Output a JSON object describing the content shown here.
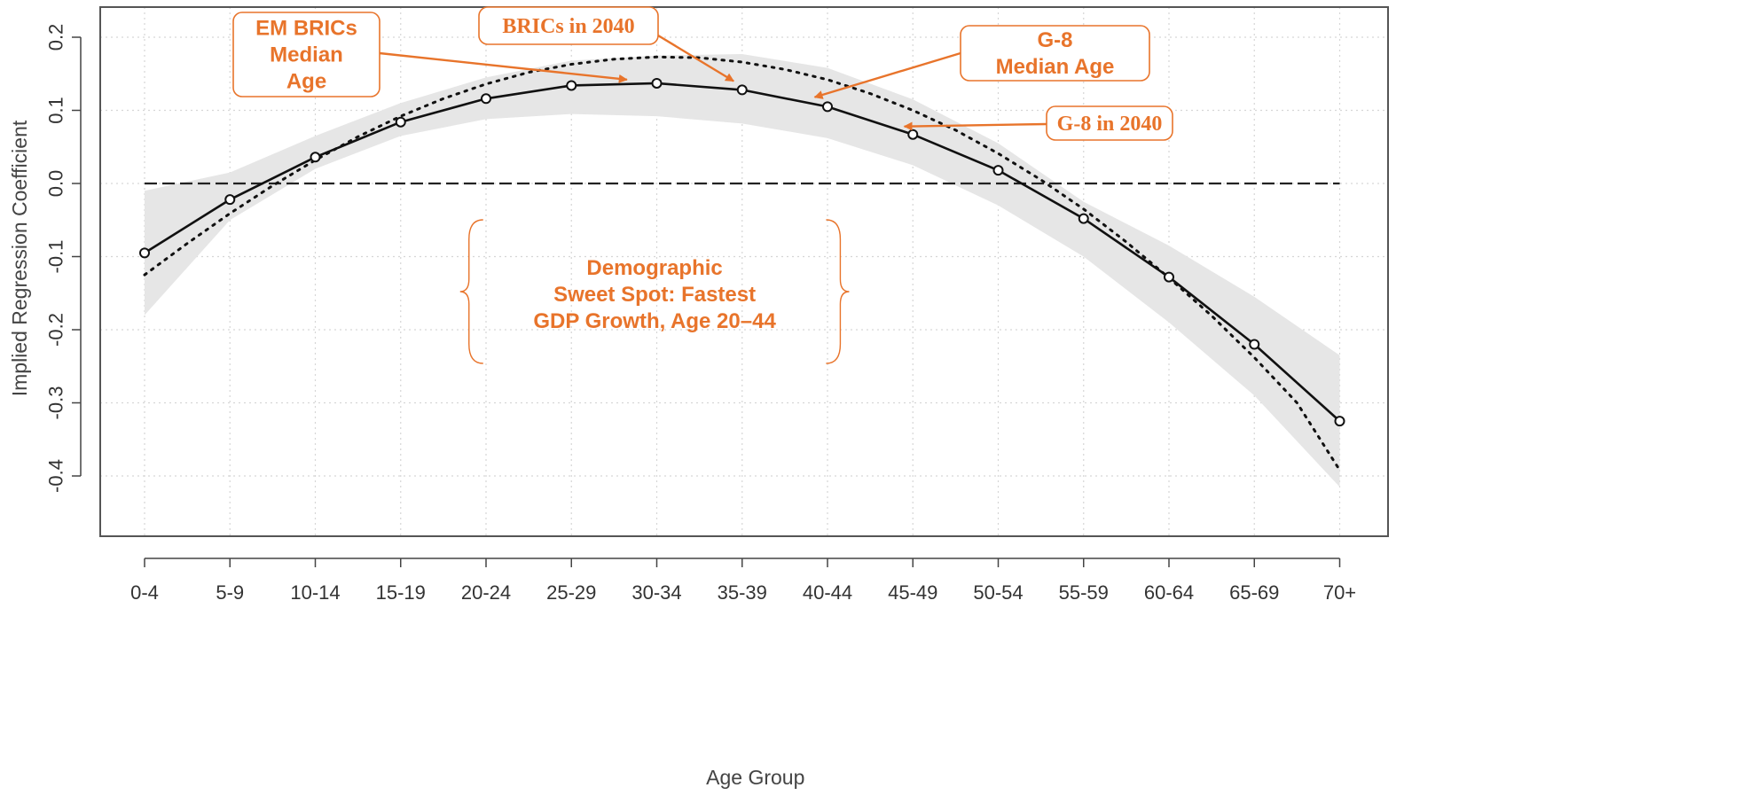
{
  "chart_data": {
    "type": "line",
    "title": "",
    "xlabel": "Age Group",
    "ylabel": "Implied Regression Coefficient",
    "categories": [
      "0-4",
      "5-9",
      "10-14",
      "15-19",
      "20-24",
      "25-29",
      "30-34",
      "35-39",
      "40-44",
      "45-49",
      "50-54",
      "55-59",
      "60-64",
      "65-69",
      "70+"
    ],
    "ylim": [
      -0.45,
      0.25
    ],
    "yticks": [
      "0.2",
      "0.1",
      "0.0",
      "-0.1",
      "-0.2",
      "-0.3",
      "-0.4"
    ],
    "ytick_values": [
      0.2,
      0.1,
      0.0,
      -0.1,
      -0.2,
      -0.3,
      -0.4
    ],
    "grid": true,
    "zero_line": 0.0,
    "series": [
      {
        "style": "solid-with-circle-markers",
        "color": "#111111",
        "values": [
          -0.095,
          -0.022,
          0.036,
          0.084,
          0.116,
          0.134,
          0.137,
          0.128,
          0.105,
          0.067,
          0.018,
          -0.048,
          -0.128,
          -0.22,
          -0.325
        ]
      },
      {
        "style": "dotted",
        "color": "#111111",
        "x_fine": [
          0,
          0.5,
          1,
          1.5,
          2,
          2.5,
          3,
          3.5,
          4,
          4.5,
          5,
          5.5,
          6,
          6.5,
          7,
          7.5,
          8,
          8.5,
          9,
          9.5,
          10,
          10.5,
          11,
          11.5,
          12,
          12.5,
          13,
          13.5,
          14
        ],
        "values_fine": [
          -0.125,
          -0.082,
          -0.041,
          -0.003,
          0.032,
          0.064,
          0.092,
          0.116,
          0.136,
          0.152,
          0.163,
          0.17,
          0.173,
          0.172,
          0.166,
          0.156,
          0.142,
          0.123,
          0.1,
          0.073,
          0.041,
          0.005,
          -0.035,
          -0.08,
          -0.129,
          -0.181,
          -0.238,
          -0.3,
          -0.392
        ]
      }
    ],
    "confidence_band": {
      "color": "#e6e6e6",
      "x": [
        0,
        1,
        2,
        3,
        4,
        5,
        6,
        7,
        8,
        9,
        10,
        11,
        12,
        13,
        14
      ],
      "lower": [
        -0.18,
        -0.05,
        0.02,
        0.065,
        0.088,
        0.095,
        0.092,
        0.082,
        0.062,
        0.025,
        -0.03,
        -0.1,
        -0.19,
        -0.29,
        -0.415
      ],
      "upper": [
        -0.01,
        0.015,
        0.065,
        0.11,
        0.145,
        0.168,
        0.175,
        0.177,
        0.158,
        0.115,
        0.055,
        -0.025,
        -0.085,
        -0.155,
        -0.235
      ]
    },
    "annotations": [
      {
        "id": "em-brics-median-age",
        "lines": [
          "EM BRICs",
          "Median",
          "Age"
        ],
        "font": "sans",
        "arrow_to": [
          5.65,
          0.142
        ]
      },
      {
        "id": "brics-2040",
        "lines": [
          "BRICs in 2040"
        ],
        "font": "serif",
        "arrow_to": [
          6.9,
          0.14
        ]
      },
      {
        "id": "g8-median-age",
        "lines": [
          "G-8",
          "Median Age"
        ],
        "font": "sans",
        "arrow_to": [
          7.85,
          0.118
        ]
      },
      {
        "id": "g8-2040",
        "lines": [
          "G-8 in 2040"
        ],
        "font": "serif",
        "arrow_to": [
          8.9,
          0.078
        ]
      }
    ],
    "sweet_spot": {
      "lines": [
        "Demographic",
        "Sweet Spot: Fastest",
        "GDP Growth, Age 20–44"
      ],
      "brace_from": 3.8,
      "brace_to": 8.15
    },
    "annotation_color": "#e8742b"
  }
}
